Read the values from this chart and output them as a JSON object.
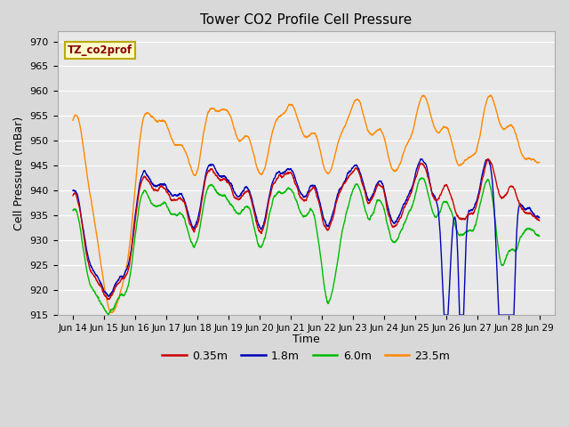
{
  "title": "Tower CO2 Profile Cell Pressure",
  "ylabel": "Cell Pressure (mBar)",
  "xlabel": "Time",
  "ylim": [
    915,
    972
  ],
  "yticks": [
    915,
    920,
    925,
    930,
    935,
    940,
    945,
    950,
    955,
    960,
    965,
    970
  ],
  "xtick_labels": [
    "Jun 14",
    "Jun 15",
    "Jun 16",
    "Jun 17",
    "Jun 18",
    "Jun 19",
    "Jun 20",
    "Jun 21",
    "Jun 22",
    "Jun 23",
    "Jun 24",
    "Jun 25",
    "Jun 26",
    "Jun 27",
    "Jun 28",
    "Jun 29"
  ],
  "xtick_positions": [
    1,
    2,
    3,
    4,
    5,
    6,
    7,
    8,
    9,
    10,
    11,
    12,
    13,
    14,
    15,
    16
  ],
  "colors": {
    "red": "#cc0000",
    "blue": "#0000bb",
    "green": "#00bb00",
    "orange": "#ff8800"
  },
  "legend_labels": [
    "0.35m",
    "1.8m",
    "6.0m",
    "23.5m"
  ],
  "bg_color": "#d8d8d8",
  "plot_bg": "#e8e8e8",
  "annotation_text": "TZ_co2prof",
  "annotation_bg": "#ffffcc",
  "annotation_border": "#bbaa00",
  "annotation_color": "#880000"
}
